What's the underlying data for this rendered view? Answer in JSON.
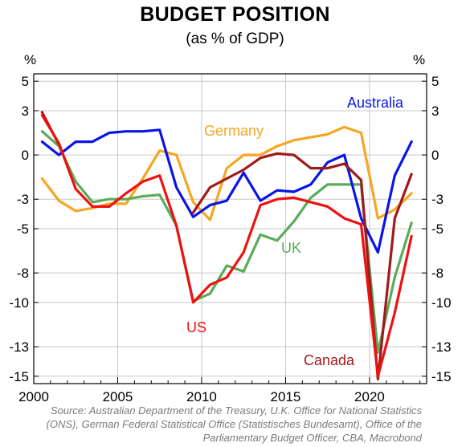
{
  "chart_data": {
    "type": "line",
    "title": "BUDGET POSITION",
    "subtitle": "(as % of GDP)",
    "ylabel_left": "%",
    "ylabel_right": "%",
    "xlim": [
      2000,
      2023.4
    ],
    "ylim": [
      -15.5,
      5.5
    ],
    "yticks": [
      5,
      3,
      0,
      -3,
      -5,
      -8,
      -10,
      -13,
      -15
    ],
    "ytick_labels": [
      "5",
      "3",
      "0",
      "-3",
      "-5",
      "-8",
      "-10",
      "-13",
      "-15"
    ],
    "xticks": [
      2000,
      2005,
      2010,
      2015,
      2020
    ],
    "xtick_labels": [
      "2000",
      "2005",
      "2010",
      "2015",
      "2020"
    ],
    "grid": true,
    "series": [
      {
        "name": "Germany",
        "color": "#f5a623",
        "x": [
          2000.5,
          2001.5,
          2002.5,
          2003.5,
          2004.5,
          2005.5,
          2006.5,
          2007.5,
          2008.5,
          2009.5,
          2010.5,
          2011.5,
          2012.5,
          2013.5,
          2014.5,
          2015.5,
          2016.5,
          2017.5,
          2018.5,
          2019.5,
          2020.5,
          2021.5,
          2022.5
        ],
        "y": [
          -1.6,
          -3.1,
          -3.8,
          -3.6,
          -3.3,
          -3.3,
          -1.6,
          0.3,
          0.0,
          -3.2,
          -4.4,
          -0.9,
          0.0,
          0.0,
          0.6,
          1.0,
          1.2,
          1.4,
          1.9,
          1.5,
          -4.3,
          -3.7,
          -2.6
        ]
      },
      {
        "name": "UK",
        "color": "#5aab5a",
        "x": [
          2000.5,
          2001.5,
          2002.5,
          2003.5,
          2004.5,
          2005.5,
          2006.5,
          2007.5,
          2008.5,
          2009.5,
          2010.5,
          2011.5,
          2012.5,
          2013.5,
          2014.5,
          2015.5,
          2016.5,
          2017.5,
          2018.5,
          2019.5,
          2020.5,
          2021.5,
          2022.5
        ],
        "y": [
          1.6,
          0.6,
          -1.8,
          -3.2,
          -3.0,
          -3.0,
          -2.8,
          -2.7,
          -4.8,
          -9.9,
          -9.4,
          -7.5,
          -7.9,
          -5.4,
          -5.8,
          -4.5,
          -2.9,
          -2.0,
          -2.0,
          -2.0,
          -13.4,
          -8.3,
          -4.6
        ]
      },
      {
        "name": "Australia",
        "color": "#0a14e6",
        "x": [
          2000.5,
          2001.5,
          2002.5,
          2003.5,
          2004.5,
          2005.5,
          2006.5,
          2007.5,
          2008.5,
          2009.5,
          2010.5,
          2011.5,
          2012.5,
          2013.5,
          2014.5,
          2015.5,
          2016.5,
          2017.5,
          2018.5,
          2019.5,
          2020.5,
          2021.5,
          2022.5
        ],
        "y": [
          0.9,
          0.0,
          0.9,
          0.9,
          1.5,
          1.6,
          1.6,
          1.7,
          -2.2,
          -4.2,
          -3.4,
          -3.1,
          -1.2,
          -3.1,
          -2.4,
          -2.5,
          -2.0,
          -0.5,
          0.0,
          -4.3,
          -6.6,
          -1.4,
          0.9
        ]
      },
      {
        "name": "Canada",
        "color": "#a01a1a",
        "x": [
          2000.5,
          2001.5,
          2002.5,
          2003.5,
          2004.5,
          2005.5,
          2006.5,
          2007.5,
          2008.5,
          2009.5,
          2010.5,
          2011.5,
          2012.5,
          2013.5,
          2014.5,
          2015.5,
          2016.5,
          2017.5,
          2018.5,
          2019.5,
          2020.5,
          2021.5,
          2022.5
        ],
        "y": [
          2.9,
          0.7,
          null,
          null,
          null,
          null,
          null,
          null,
          null,
          -3.9,
          -2.2,
          -1.6,
          -1.0,
          -0.2,
          0.1,
          0.0,
          -0.9,
          -0.9,
          -0.6,
          -1.7,
          -15.2,
          -4.3,
          -1.3
        ]
      },
      {
        "name": "US",
        "color": "#ee1111",
        "x": [
          2000.5,
          2001.5,
          2002.5,
          2003.5,
          2004.5,
          2005.5,
          2006.5,
          2007.5,
          2008.5,
          2009.5,
          2010.5,
          2011.5,
          2012.5,
          2013.5,
          2014.5,
          2015.5,
          2016.5,
          2017.5,
          2018.5,
          2019.5,
          2020.5,
          2021.5,
          2022.5
        ],
        "y": [
          2.7,
          0.8,
          -2.3,
          -3.5,
          -3.5,
          -2.6,
          -1.8,
          -1.4,
          -4.8,
          -10.0,
          -8.8,
          -8.3,
          -6.6,
          -3.4,
          -3.0,
          -2.9,
          -3.2,
          -3.5,
          -4.3,
          -4.7,
          -15.0,
          -10.7,
          -5.5
        ]
      }
    ],
    "series_labels": [
      "Australia",
      "Germany",
      "UK",
      "US",
      "Canada"
    ]
  },
  "source_lines": [
    "Source: Australian Department of the Treasury, U.K. Office for National Statistics",
    "(ONS), German Federal Statistical Office (Statistisches Bundesamt), Office of the",
    "Parliamentary Budget Officer, CBA, Macrobond"
  ]
}
